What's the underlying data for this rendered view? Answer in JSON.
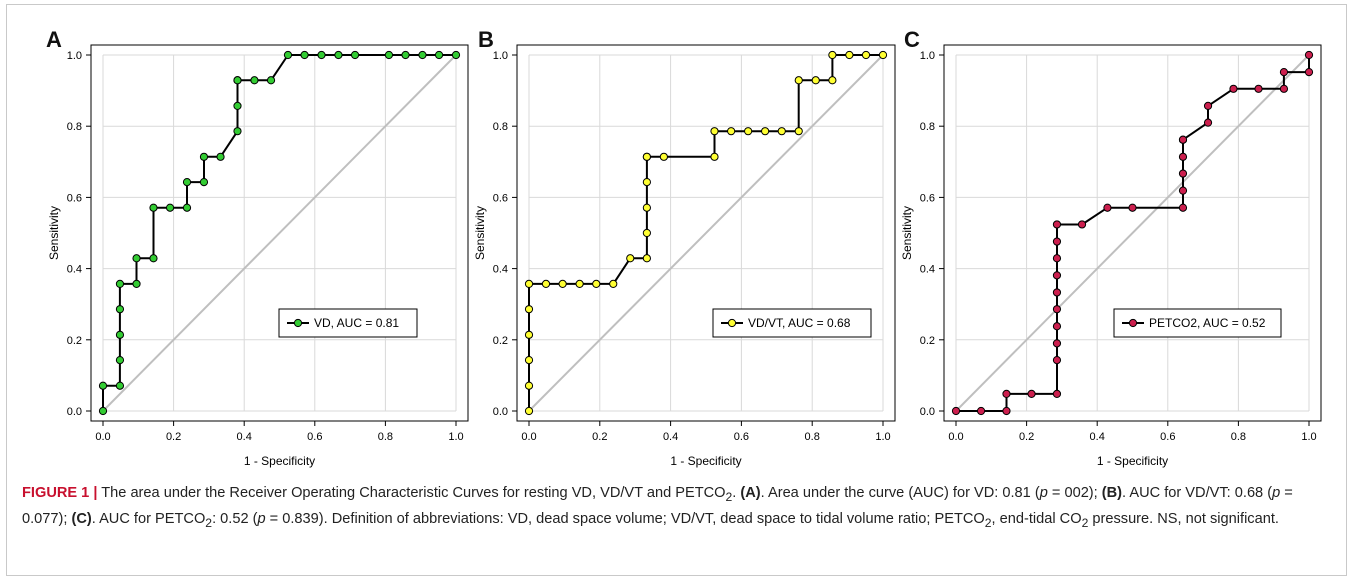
{
  "chart_data": [
    {
      "type": "line",
      "panel": "A",
      "xlabel": "1 - Specificity",
      "ylabel": "Sensitivity",
      "xlim": [
        0,
        1
      ],
      "ylim": [
        0,
        1
      ],
      "xticks": [
        "0.0",
        "0.2",
        "0.4",
        "0.6",
        "0.8",
        "1.0"
      ],
      "yticks": [
        "0.0",
        "0.2",
        "0.4",
        "0.6",
        "0.8",
        "1.0"
      ],
      "grid": true,
      "reference_line": true,
      "legend_position": "lower-right",
      "marker_color": "#33cc33",
      "series": [
        {
          "name": "VD, AUC = 0.81",
          "x": [
            0,
            0,
            0.048,
            0.048,
            0.048,
            0.048,
            0.048,
            0.095,
            0.095,
            0.143,
            0.143,
            0.19,
            0.238,
            0.238,
            0.286,
            0.286,
            0.333,
            0.381,
            0.381,
            0.381,
            0.381,
            0.429,
            0.476,
            0.524,
            0.571,
            0.619,
            0.667,
            0.714,
            0.81,
            0.857,
            0.905,
            0.952,
            1.0
          ],
          "y": [
            0,
            0.071,
            0.071,
            0.143,
            0.214,
            0.286,
            0.357,
            0.357,
            0.429,
            0.429,
            0.571,
            0.571,
            0.571,
            0.643,
            0.643,
            0.714,
            0.714,
            0.786,
            0.857,
            0.929,
            0.929,
            0.929,
            0.929,
            1.0,
            1.0,
            1.0,
            1.0,
            1.0,
            1.0,
            1.0,
            1.0,
            1.0,
            1.0
          ]
        }
      ]
    },
    {
      "type": "line",
      "panel": "B",
      "xlabel": "1 - Specificity",
      "ylabel": "Sensitivity",
      "xlim": [
        0,
        1
      ],
      "ylim": [
        0,
        1
      ],
      "xticks": [
        "0.0",
        "0.2",
        "0.4",
        "0.6",
        "0.8",
        "1.0"
      ],
      "yticks": [
        "0.0",
        "0.2",
        "0.4",
        "0.6",
        "0.8",
        "1.0"
      ],
      "grid": true,
      "reference_line": true,
      "legend_position": "lower-right",
      "marker_color": "#ffff33",
      "series": [
        {
          "name": "VD/VT, AUC = 0.68",
          "x": [
            0,
            0,
            0,
            0,
            0,
            0,
            0.048,
            0.095,
            0.143,
            0.19,
            0.238,
            0.286,
            0.333,
            0.333,
            0.333,
            0.333,
            0.333,
            0.333,
            0.381,
            0.524,
            0.524,
            0.571,
            0.619,
            0.667,
            0.714,
            0.762,
            0.762,
            0.81,
            0.857,
            0.857,
            0.905,
            0.952,
            1.0
          ],
          "y": [
            0,
            0.071,
            0.143,
            0.214,
            0.286,
            0.357,
            0.357,
            0.357,
            0.357,
            0.357,
            0.357,
            0.429,
            0.429,
            0.5,
            0.571,
            0.643,
            0.714,
            0.714,
            0.714,
            0.714,
            0.786,
            0.786,
            0.786,
            0.786,
            0.786,
            0.786,
            0.929,
            0.929,
            0.929,
            1.0,
            1.0,
            1.0,
            1.0
          ]
        }
      ]
    },
    {
      "type": "line",
      "panel": "C",
      "xlabel": "1 - Specificity",
      "ylabel": "Sensitivity",
      "xlim": [
        0,
        1
      ],
      "ylim": [
        0,
        1
      ],
      "xticks": [
        "0.0",
        "0.2",
        "0.4",
        "0.6",
        "0.8",
        "1.0"
      ],
      "yticks": [
        "0.0",
        "0.2",
        "0.4",
        "0.6",
        "0.8",
        "1.0"
      ],
      "grid": true,
      "reference_line": true,
      "legend_position": "lower-right",
      "marker_color": "#cc1f4e",
      "series": [
        {
          "name": "PETCO2, AUC = 0.52",
          "x": [
            0,
            0.071,
            0.143,
            0.143,
            0.214,
            0.286,
            0.286,
            0.286,
            0.286,
            0.286,
            0.286,
            0.286,
            0.286,
            0.286,
            0.286,
            0.357,
            0.429,
            0.5,
            0.643,
            0.643,
            0.643,
            0.643,
            0.643,
            0.643,
            0.714,
            0.714,
            0.786,
            0.857,
            0.929,
            0.929,
            1.0,
            1.0
          ],
          "y": [
            0,
            0,
            0,
            0.048,
            0.048,
            0.048,
            0.143,
            0.19,
            0.238,
            0.286,
            0.333,
            0.381,
            0.429,
            0.476,
            0.524,
            0.524,
            0.571,
            0.571,
            0.571,
            0.619,
            0.667,
            0.714,
            0.762,
            0.762,
            0.81,
            0.857,
            0.905,
            0.905,
            0.905,
            0.952,
            0.952,
            1.0
          ]
        }
      ]
    }
  ],
  "caption": {
    "figure_label": "FIGURE 1 |",
    "s1": " The area under the Receiver Operating Characteristic Curves for resting VD, VD/VT and PETCO",
    "s1_sub": "2",
    "s2": ". ",
    "a_label": "(A)",
    "s3": ". Area under the curve (AUC) for VD: 0.81 (",
    "p1": "p",
    "s4": " = 002); ",
    "b_label": "(B)",
    "s5": ". AUC for VD/VT: 0.68 (",
    "p2": "p",
    "s6": " = 0.077); ",
    "c_label": "(C)",
    "s7": ". AUC for PETCO",
    "s7_sub": "2",
    "s8": ": 0.52 (",
    "p3": "p",
    "s9": " = 0.839). Definition of abbreviations: VD, dead space volume; VD/VT, dead space to tidal volume ratio; PETCO",
    "s9_sub": "2",
    "s10": ", end-tidal CO",
    "s10_sub": "2",
    "s11": " pressure. NS, not significant."
  }
}
